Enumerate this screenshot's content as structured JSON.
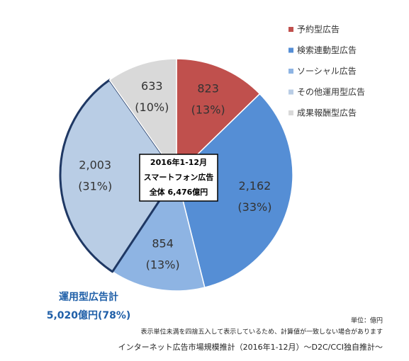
{
  "chart_data": {
    "type": "pie",
    "categories": [
      "予約型広告",
      "検索連動型広告",
      "ソーシャル広告",
      "その他運用型広告",
      "成果報酬型広告"
    ],
    "values": [
      823,
      2162,
      854,
      2003,
      633
    ],
    "value_labels": [
      "823",
      "2,162",
      "854",
      "2,003",
      "633"
    ],
    "percent_labels": [
      "(13%)",
      "(33%)",
      "(13%)",
      "(31%)",
      "(10%)"
    ],
    "colors": [
      "#c0504d",
      "#558ed5",
      "#8eb4e3",
      "#b9cde5",
      "#d9d9d9"
    ],
    "center_text": [
      "2016年1-12月",
      "スマートフォン広告",
      "全体 6,476億円"
    ],
    "annotation": [
      "運用型広告計",
      "5,020億円(78%)"
    ],
    "unit": "単位：億円",
    "note": "表示単位未満を四捨五入して表示しているため、計算値が一致しない場合があります",
    "source": "インターネット広告市場規模推計（2016年1-12月）～D2C/CCI独自推計～"
  }
}
